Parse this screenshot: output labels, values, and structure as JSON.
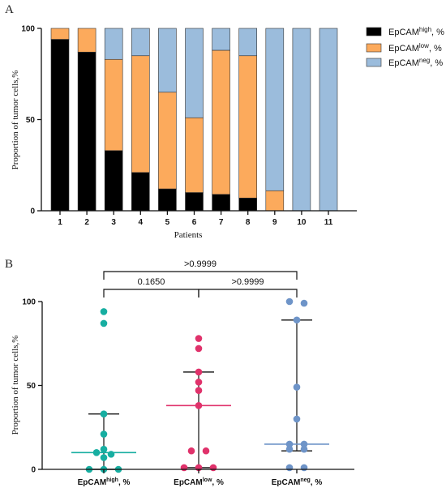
{
  "colors": {
    "high": "#000000",
    "low": "#fcaa5c",
    "neg": "#9bbcdc",
    "stroke": "#333333",
    "scatter_high": "#17aea1",
    "scatter_low": "#e0326b",
    "scatter_neg": "#6e94c8"
  },
  "panels": {
    "a_letter": "A",
    "b_letter": "B"
  },
  "legend": {
    "high_base": "EpCAM",
    "high_sup": "high",
    "high_suffix": ", %",
    "low_base": "EpCAM",
    "low_sup": "low",
    "low_suffix": ", %",
    "neg_base": "EpCAM",
    "neg_sup": "neg",
    "neg_suffix": ",  %"
  },
  "chart_data": [
    {
      "type": "bar",
      "stacked": true,
      "xlabel": "Patients",
      "ylabel": "Proportion of tumor cells,%",
      "ylim": [
        0,
        100
      ],
      "yticks": [
        "0",
        "50",
        "100"
      ],
      "grid": false,
      "legend_position": "top-right",
      "categories": [
        "1",
        "2",
        "3",
        "4",
        "5",
        "6",
        "7",
        "8",
        "9",
        "10",
        "11"
      ],
      "series": [
        {
          "name": "EpCAMhigh, %",
          "values": [
            94,
            87,
            33,
            21,
            12,
            10,
            9,
            7,
            0,
            0,
            0
          ]
        },
        {
          "name": "EpCAMlow, %",
          "values": [
            6,
            13,
            50,
            64,
            53,
            41,
            79,
            78,
            11,
            0,
            0
          ]
        },
        {
          "name": "EpCAMneg, %",
          "values": [
            0,
            0,
            17,
            15,
            35,
            49,
            12,
            15,
            89,
            100,
            100
          ]
        }
      ]
    },
    {
      "type": "scatter",
      "ylabel": "Proportion of tumor cells,%",
      "ylim": [
        0,
        100
      ],
      "yticks": [
        "0",
        "50",
        "100"
      ],
      "grid": false,
      "categories": [
        {
          "base": "EpCAM",
          "sup": "high",
          "suffix": ", %"
        },
        {
          "base": "EpCAM",
          "sup": "low",
          "suffix": ", %"
        },
        {
          "base": "EpCAM",
          "sup": "neg",
          "suffix": ",  %"
        }
      ],
      "groups": [
        {
          "values": [
            94,
            87,
            33,
            21,
            12,
            10,
            9,
            7,
            0,
            0,
            0
          ],
          "median": 10,
          "q1": 0,
          "q3": 33
        },
        {
          "values": [
            78,
            72,
            58,
            52,
            47,
            38,
            11,
            11,
            1,
            1,
            1
          ],
          "median": 38,
          "q1": 1,
          "q3": 58
        },
        {
          "values": [
            100,
            99,
            89,
            49,
            30,
            15,
            15,
            12,
            12,
            1,
            1
          ],
          "median": 15,
          "q1": 11,
          "q3": 89
        }
      ],
      "comparisons": [
        {
          "from": 0,
          "to": 1,
          "label": "0.1650"
        },
        {
          "from": 1,
          "to": 2,
          "label": ">0.9999"
        },
        {
          "from": 0,
          "to": 2,
          "label": ">0.9999"
        }
      ]
    }
  ]
}
